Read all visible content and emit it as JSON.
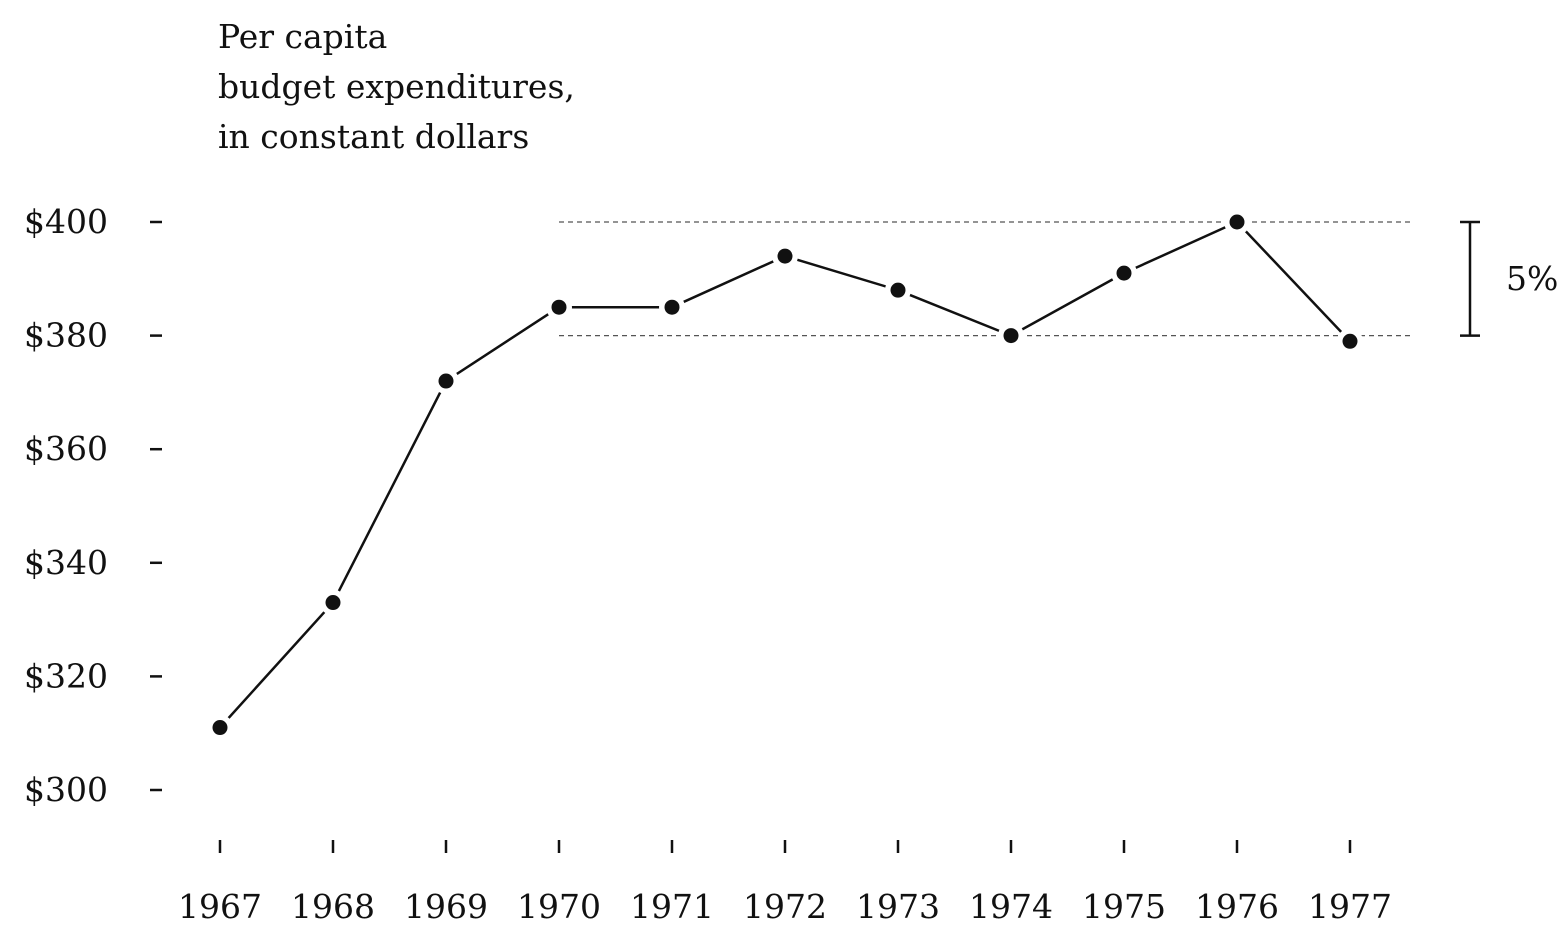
{
  "chart_data": {
    "type": "line",
    "title_lines": [
      "Per capita",
      "budget expenditures,",
      "in constant dollars"
    ],
    "xlabel": "",
    "ylabel": "",
    "x": [
      "1967",
      "1968",
      "1969",
      "1970",
      "1971",
      "1972",
      "1973",
      "1974",
      "1975",
      "1976",
      "1977"
    ],
    "series": [
      {
        "values": [
          311,
          333,
          372,
          385,
          385,
          394,
          388,
          380,
          391,
          400,
          379
        ]
      }
    ],
    "ylim": [
      300,
      400
    ],
    "yticks": [
      {
        "value": 400,
        "label": "$400"
      },
      {
        "value": 380,
        "label": "$380"
      },
      {
        "value": 360,
        "label": "$360"
      },
      {
        "value": 340,
        "label": "$340"
      },
      {
        "value": 320,
        "label": "$320"
      },
      {
        "value": 300,
        "label": "$300"
      }
    ],
    "reference_band": {
      "upper": 400,
      "lower": 380,
      "start_x": "1970",
      "label": "5%"
    },
    "grid": false,
    "legend": "none",
    "colors": {
      "line": "#111111",
      "marker": "#111111",
      "dashed": "#555555"
    }
  }
}
